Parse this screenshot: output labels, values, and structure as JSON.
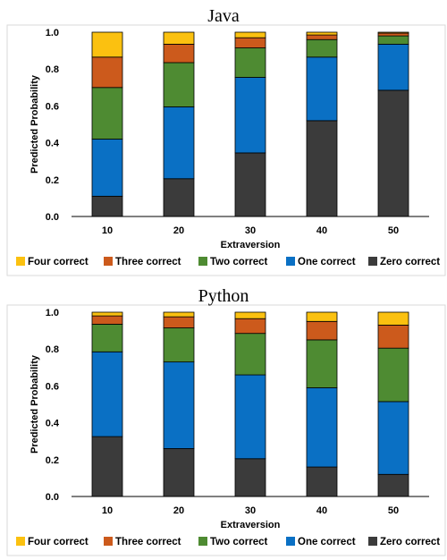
{
  "chart_data": [
    {
      "type": "bar",
      "stacked": true,
      "title": "Java",
      "xlabel": "Extraversion",
      "ylabel": "Predicted Probability",
      "categories": [
        "10",
        "20",
        "30",
        "40",
        "50"
      ],
      "ylim": [
        0,
        1
      ],
      "yticks": [
        "0.0",
        "0.2",
        "0.4",
        "0.6",
        "0.8",
        "1.0"
      ],
      "grid": false,
      "legend": "bottom",
      "series": [
        {
          "name": "Zero correct",
          "color": "#3b3b3b",
          "values": [
            0.11,
            0.205,
            0.345,
            0.52,
            0.685
          ]
        },
        {
          "name": "One correct",
          "color": "#0a70c4",
          "values": [
            0.31,
            0.39,
            0.41,
            0.345,
            0.25
          ]
        },
        {
          "name": "Two correct",
          "color": "#4e8b32",
          "values": [
            0.28,
            0.24,
            0.16,
            0.095,
            0.045
          ]
        },
        {
          "name": "Three correct",
          "color": "#cc5a1c",
          "values": [
            0.165,
            0.1,
            0.055,
            0.025,
            0.015
          ]
        },
        {
          "name": "Four correct",
          "color": "#fbc110",
          "values": [
            0.135,
            0.065,
            0.03,
            0.015,
            0.005
          ]
        }
      ]
    },
    {
      "type": "bar",
      "stacked": true,
      "title": "Python",
      "xlabel": "Extraversion",
      "ylabel": "Predicted Probability",
      "categories": [
        "10",
        "20",
        "30",
        "40",
        "50"
      ],
      "ylim": [
        0,
        1
      ],
      "yticks": [
        "0.0",
        "0.2",
        "0.4",
        "0.6",
        "0.8",
        "1.0"
      ],
      "grid": false,
      "legend": "bottom",
      "series": [
        {
          "name": "Zero correct",
          "color": "#3b3b3b",
          "values": [
            0.325,
            0.26,
            0.205,
            0.16,
            0.12
          ]
        },
        {
          "name": "One correct",
          "color": "#0a70c4",
          "values": [
            0.46,
            0.47,
            0.455,
            0.43,
            0.395
          ]
        },
        {
          "name": "Two correct",
          "color": "#4e8b32",
          "values": [
            0.15,
            0.185,
            0.225,
            0.26,
            0.29
          ]
        },
        {
          "name": "Three correct",
          "color": "#cc5a1c",
          "values": [
            0.045,
            0.06,
            0.08,
            0.1,
            0.125
          ]
        },
        {
          "name": "Four correct",
          "color": "#fbc110",
          "values": [
            0.02,
            0.025,
            0.035,
            0.05,
            0.07
          ]
        }
      ]
    }
  ],
  "legend_order": [
    "Four correct",
    "Three correct",
    "Two correct",
    "One correct",
    "Zero correct"
  ]
}
